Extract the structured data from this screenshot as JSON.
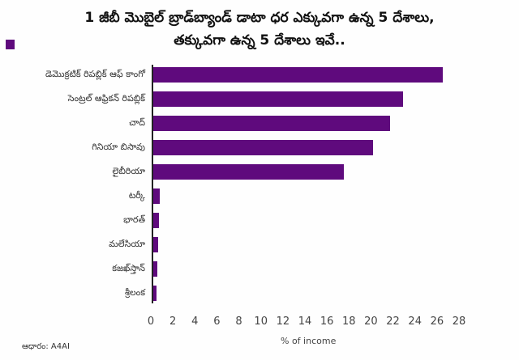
{
  "title": {
    "line1": "1 జీబీ మొబైల్ బ్రాడ్‌బ్యాండ్ డాటా ధర ఎక్కువగా ఉన్న 5 దేశాలు,",
    "line2": "తక్కువగా ఉన్న 5 దేశాలు ఇవే.."
  },
  "legend": {
    "color": "#5f0a7d"
  },
  "source": "ఆధారం: A4AI",
  "chart_data": {
    "type": "bar",
    "orientation": "horizontal",
    "title": "1 జీబీ మొబైల్ బ్రాడ్‌బ్యాండ్ డాటా ధర ఎక్కువగా ఉన్న 5 దేశాలు, తక్కువగా ఉన్న 5 దేశాలు ఇవే..",
    "xlabel": "% of income",
    "ylabel": "",
    "xlim": [
      0,
      28
    ],
    "xticks": [
      "0",
      "2",
      "4",
      "6",
      "8",
      "10",
      "12",
      "14",
      "16",
      "18",
      "20",
      "22",
      "24",
      "26",
      "28"
    ],
    "grid": false,
    "bar_color": "#5f0a7d",
    "categories": [
      "డెమొక్రటిక్ రిపబ్లిక్ ఆఫ్ కాంగో",
      "సెంట్రల్ ఆఫ్రికన్ రిపబ్లిక్",
      "చాద్",
      "గినియా బిసావు",
      "లైబీరియా",
      "టర్కీ",
      "భారత్",
      "మలేసియా",
      "కజఖ్‌స్తాన్",
      "శ్రీలంక"
    ],
    "values": [
      26.3,
      22.7,
      21.5,
      20.0,
      17.3,
      0.6,
      0.5,
      0.45,
      0.4,
      0.3
    ],
    "source": "ఆధారం: A4AI"
  }
}
